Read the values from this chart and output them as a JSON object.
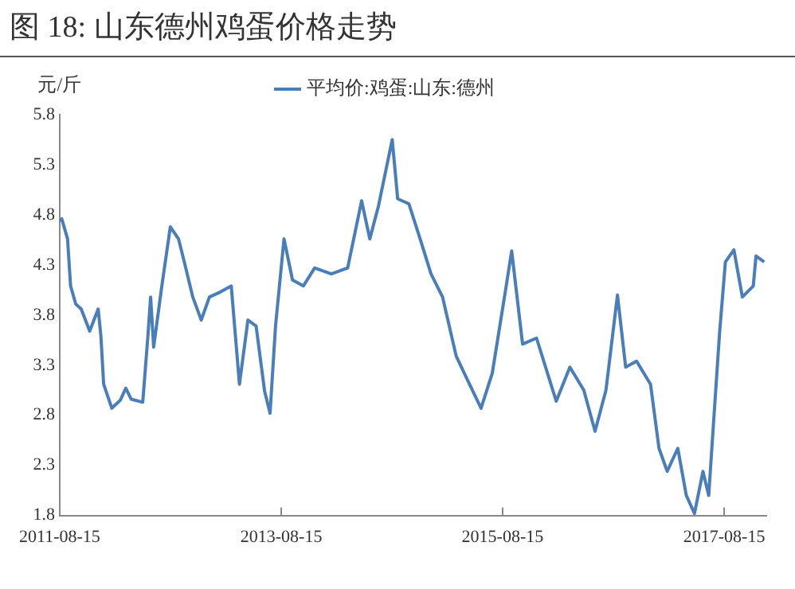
{
  "chart_data": {
    "type": "line",
    "title": "图 18: 山东德州鸡蛋价格走势",
    "ylabel": "元/斤",
    "legend": "top",
    "x": [
      "2011-08-15",
      "2011-08-22",
      "2011-09-10",
      "2011-09-20",
      "2011-10-07",
      "2011-10-25",
      "2011-11-22",
      "2011-12-20",
      "2011-12-29",
      "2012-01-07",
      "2012-02-03",
      "2012-03-02",
      "2012-03-20",
      "2012-04-07",
      "2012-05-15",
      "2012-06-01",
      "2012-06-10",
      "2012-06-20",
      "2012-07-17",
      "2012-08-14",
      "2012-09-10",
      "2012-09-29",
      "2012-10-27",
      "2012-11-24",
      "2012-12-21",
      "2013-01-26",
      "2013-03-03",
      "2013-03-30",
      "2013-04-27",
      "2013-05-24",
      "2013-06-21",
      "2013-07-09",
      "2013-07-27",
      "2013-08-24",
      "2013-09-21",
      "2013-10-27",
      "2013-12-03",
      "2014-01-27",
      "2014-03-22",
      "2014-05-07",
      "2014-06-03",
      "2014-07-01",
      "2014-08-16",
      "2014-09-03",
      "2014-10-10",
      "2014-11-16",
      "2014-12-22",
      "2015-01-29",
      "2015-03-15",
      "2015-04-20",
      "2015-06-05",
      "2015-07-12",
      "2015-08-27",
      "2015-09-14",
      "2015-10-20",
      "2015-12-05",
      "2016-02-08",
      "2016-03-24",
      "2016-05-09",
      "2016-06-15",
      "2016-07-21",
      "2016-08-28",
      "2016-09-24",
      "2016-10-30",
      "2016-12-15",
      "2017-01-12",
      "2017-02-08",
      "2017-03-15",
      "2017-04-12",
      "2017-05-09",
      "2017-06-06",
      "2017-06-25",
      "2017-07-13",
      "2017-07-31",
      "2017-08-19",
      "2017-09-16",
      "2017-10-14",
      "2017-11-19",
      "2017-11-28",
      "2017-12-25"
    ],
    "series": [
      {
        "name": "平均价:鸡蛋:山东:德州",
        "color": "#4a7ebb",
        "values": [
          4.74,
          4.76,
          4.56,
          4.09,
          3.91,
          3.86,
          3.64,
          3.86,
          3.59,
          3.11,
          2.87,
          2.95,
          3.07,
          2.96,
          2.93,
          3.59,
          3.98,
          3.48,
          4.09,
          4.68,
          4.56,
          4.33,
          3.98,
          3.75,
          3.98,
          4.03,
          4.09,
          3.11,
          3.75,
          3.69,
          3.04,
          2.82,
          3.69,
          4.56,
          4.15,
          4.09,
          4.27,
          4.21,
          4.27,
          4.94,
          4.56,
          4.88,
          5.55,
          4.96,
          4.91,
          4.56,
          4.21,
          3.98,
          3.39,
          3.16,
          2.87,
          3.22,
          4.09,
          4.44,
          3.51,
          3.57,
          2.94,
          3.28,
          3.05,
          2.64,
          3.05,
          4.0,
          3.28,
          3.34,
          3.11,
          2.47,
          2.24,
          2.47,
          2.0,
          1.82,
          2.24,
          2.0,
          2.82,
          3.63,
          4.33,
          4.45,
          3.98,
          4.09,
          4.39,
          4.33
        ]
      }
    ],
    "xlim": [
      "2011-08-15",
      "2018-01-01"
    ],
    "xticks": [
      "2011-08-15",
      "2013-08-15",
      "2015-08-15",
      "2017-08-15"
    ],
    "ylim": [
      1.8,
      5.8
    ],
    "yticks": [
      1.8,
      2.3,
      2.8,
      3.3,
      3.8,
      4.3,
      4.8,
      5.3,
      5.8
    ],
    "grid": false,
    "marker": "none",
    "line_style": "solid"
  }
}
